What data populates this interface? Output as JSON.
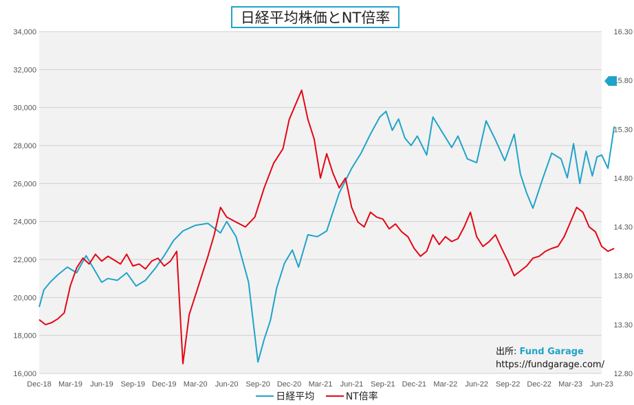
{
  "chart_data": {
    "type": "line",
    "title": "日経平均株価とNT倍率",
    "x_ticks": [
      "Dec-18",
      "Mar-19",
      "Jun-19",
      "Sep-19",
      "Dec-19",
      "Mar-20",
      "Jun-20",
      "Sep-20",
      "Dec-20",
      "Mar-21",
      "Jun-21",
      "Sep-21",
      "Dec-21",
      "Mar-22",
      "Jun-22",
      "Sep-22",
      "Dec-22",
      "Mar-23",
      "Jun-23"
    ],
    "y_left": {
      "ticks": [
        "16,000",
        "18,000",
        "20,000",
        "22,000",
        "24,000",
        "26,000",
        "28,000",
        "30,000",
        "32,000",
        "34,000"
      ],
      "range": [
        16000,
        34000
      ]
    },
    "y_right": {
      "ticks": [
        "12.80",
        "13.30",
        "13.80",
        "14.30",
        "14.80",
        "15.30",
        "15.80",
        "16.30"
      ],
      "range": [
        12.8,
        16.3
      ]
    },
    "current_value_marker": "right-axis arrow at 15.80 level (blue)",
    "grid": true,
    "legend_position": "bottom",
    "series": [
      {
        "name": "日経平均",
        "color": "#1fa3c9",
        "axis": "left",
        "x": [
          0,
          0.15,
          0.35,
          0.6,
          0.9,
          1.2,
          1.5,
          1.75,
          2.0,
          2.2,
          2.5,
          2.8,
          3.1,
          3.4,
          3.7,
          4.0,
          4.3,
          4.6,
          5.0,
          5.4,
          5.8,
          6.0,
          6.3,
          6.7,
          7.0,
          7.2,
          7.4,
          7.6,
          7.85,
          8.1,
          8.3,
          8.6,
          8.9,
          9.2,
          9.6,
          10.0,
          10.3,
          10.6,
          10.9,
          11.1,
          11.3,
          11.5,
          11.7,
          11.9,
          12.1,
          12.4,
          12.6,
          12.9,
          13.2,
          13.4,
          13.7,
          14.0,
          14.3,
          14.6,
          14.9,
          15.2,
          15.4,
          15.6,
          15.8,
          16.1,
          16.4,
          16.7,
          16.9,
          17.1,
          17.3,
          17.5,
          17.7,
          17.85,
          18.0,
          18.2,
          18.4
        ],
        "values": [
          19500,
          20400,
          20800,
          21200,
          21600,
          21300,
          22200,
          21500,
          20800,
          21000,
          20900,
          21300,
          20600,
          20900,
          21500,
          22200,
          23000,
          23500,
          23800,
          23900,
          23400,
          24000,
          23200,
          20800,
          16600,
          17800,
          18800,
          20500,
          21800,
          22500,
          21600,
          23300,
          23200,
          23500,
          25500,
          26800,
          27600,
          28600,
          29500,
          29800,
          28800,
          29400,
          28400,
          28000,
          28500,
          27500,
          29500,
          28700,
          27900,
          28500,
          27300,
          27100,
          29300,
          28300,
          27200,
          28600,
          26500,
          25500,
          24700,
          26200,
          27600,
          27300,
          26300,
          28100,
          26000,
          27700,
          26400,
          27400,
          27500,
          26800,
          29000
        ]
      },
      {
        "name": "NT倍率",
        "color": "#e30613",
        "axis": "right",
        "x": [
          0,
          0.2,
          0.4,
          0.6,
          0.8,
          1.0,
          1.2,
          1.4,
          1.6,
          1.8,
          2.0,
          2.2,
          2.4,
          2.6,
          2.8,
          3.0,
          3.2,
          3.4,
          3.6,
          3.8,
          4.0,
          4.2,
          4.4,
          4.6,
          4.8,
          5.0,
          5.2,
          5.4,
          5.6,
          5.8,
          6.0,
          6.3,
          6.6,
          6.9,
          7.2,
          7.5,
          7.8,
          8.0,
          8.2,
          8.4,
          8.6,
          8.8,
          9.0,
          9.2,
          9.4,
          9.6,
          9.8,
          10.0,
          10.2,
          10.4,
          10.6,
          10.8,
          11.0,
          11.2,
          11.4,
          11.6,
          11.8,
          12.0,
          12.2,
          12.4,
          12.6,
          12.8,
          13.0,
          13.2,
          13.4,
          13.6,
          13.8,
          14.0,
          14.2,
          14.4,
          14.6,
          14.8,
          15.0,
          15.2,
          15.4,
          15.6,
          15.8,
          16.0,
          16.2,
          16.4,
          16.6,
          16.8,
          17.0,
          17.2,
          17.4,
          17.6,
          17.8,
          18.0,
          18.2,
          18.4
        ],
        "values": [
          13.35,
          13.3,
          13.32,
          13.36,
          13.42,
          13.7,
          13.88,
          13.98,
          13.92,
          14.02,
          13.95,
          14.0,
          13.96,
          13.92,
          14.02,
          13.9,
          13.92,
          13.87,
          13.95,
          13.98,
          13.9,
          13.95,
          14.05,
          12.9,
          13.4,
          13.6,
          13.8,
          14.0,
          14.22,
          14.5,
          14.4,
          14.35,
          14.3,
          14.4,
          14.7,
          14.95,
          15.1,
          15.4,
          15.55,
          15.7,
          15.4,
          15.2,
          14.8,
          15.05,
          14.85,
          14.7,
          14.8,
          14.5,
          14.35,
          14.3,
          14.45,
          14.4,
          14.38,
          14.28,
          14.33,
          14.25,
          14.2,
          14.08,
          14.0,
          14.05,
          14.22,
          14.12,
          14.2,
          14.15,
          14.18,
          14.3,
          14.45,
          14.2,
          14.1,
          14.15,
          14.22,
          14.08,
          13.95,
          13.8,
          13.85,
          13.9,
          13.98,
          14.0,
          14.05,
          14.08,
          14.1,
          14.2,
          14.35,
          14.5,
          14.45,
          14.3,
          14.25,
          14.1,
          14.05,
          14.08
        ]
      }
    ]
  },
  "source": {
    "label": "出所:",
    "brand": "Fund Garage",
    "url": "https://fundgarage.com/"
  },
  "legend": [
    {
      "label": "日経平均",
      "color": "#1fa3c9"
    },
    {
      "label": "NT倍率",
      "color": "#e30613"
    }
  ]
}
